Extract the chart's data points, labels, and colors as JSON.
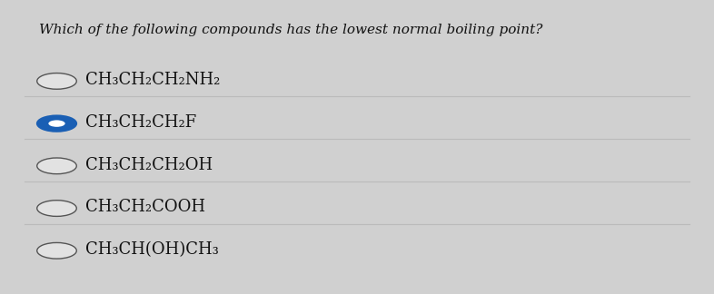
{
  "title": "Which of the following compounds has the lowest normal boiling point?",
  "options": [
    {
      "text": "CH₃CH₂CH₂NH₂",
      "selected": false
    },
    {
      "text": "CH₃CH₂CH₂F",
      "selected": true
    },
    {
      "text": "CH₃CH₂CH₂OH",
      "selected": false
    },
    {
      "text": "CH₃CH₂COOH",
      "selected": false
    },
    {
      "text": "CH₃CH(OH)CH₃",
      "selected": false
    }
  ],
  "bg_color": "#d0d0d0",
  "card_color": "#e2e2e2",
  "title_fontsize": 11,
  "option_fontsize": 13,
  "circle_color_filled": "#1a5fb4",
  "circle_edge_color": "#555555",
  "line_color": "#bbbbbb",
  "text_color": "#111111"
}
